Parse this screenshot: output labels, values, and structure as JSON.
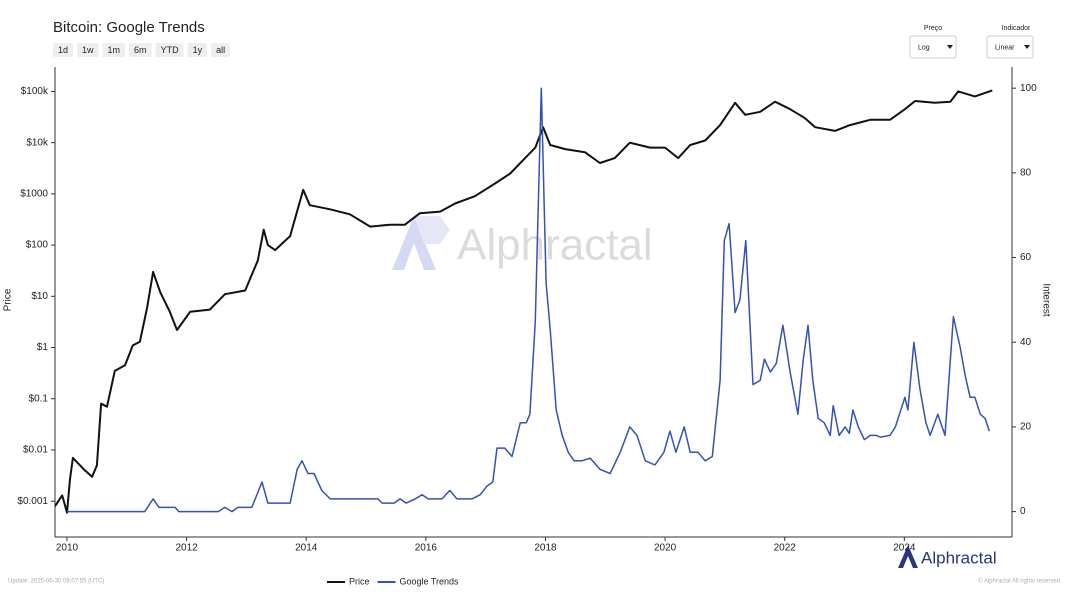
{
  "chart_data": {
    "type": "line",
    "title": "Bitcoin: Google Trends",
    "xlabel": null,
    "ylabel": "Price",
    "y2label": "Interest",
    "ylog": true,
    "legend": "bottom",
    "xlim": [
      2009.8,
      2025.8
    ],
    "xticks": [
      2010,
      2012,
      2014,
      2016,
      2018,
      2020,
      2022,
      2024
    ],
    "ylim": [
      0.0002,
      300000
    ],
    "yticks": [
      {
        "value": 0.001,
        "label": "$0.001"
      },
      {
        "value": 0.01,
        "label": "$0.01"
      },
      {
        "value": 0.1,
        "label": "$0.1"
      },
      {
        "value": 1,
        "label": "$1"
      },
      {
        "value": 10,
        "label": "$10"
      },
      {
        "value": 100,
        "label": "$100"
      },
      {
        "value": 1000,
        "label": "$1000"
      },
      {
        "value": 10000,
        "label": "$10k"
      },
      {
        "value": 100000,
        "label": "$100k"
      }
    ],
    "y2lim": [
      -6,
      105
    ],
    "y2ticks": [
      0,
      20,
      40,
      60,
      80,
      100
    ],
    "series": [
      {
        "name": "Price",
        "color": "#111111",
        "x": [
          2009.8,
          2009.92,
          2010.0,
          2010.05,
          2010.1,
          2010.3,
          2010.42,
          2010.5,
          2010.57,
          2010.67,
          2010.8,
          2010.97,
          2011.1,
          2011.22,
          2011.34,
          2011.44,
          2011.56,
          2011.72,
          2011.84,
          2012.06,
          2012.39,
          2012.64,
          2012.98,
          2013.19,
          2013.29,
          2013.36,
          2013.48,
          2013.73,
          2013.95,
          2014.06,
          2014.4,
          2014.73,
          2015.07,
          2015.4,
          2015.65,
          2015.9,
          2016.24,
          2016.49,
          2016.82,
          2017.16,
          2017.41,
          2017.66,
          2017.83,
          2017.96,
          2018.08,
          2018.33,
          2018.66,
          2018.91,
          2019.16,
          2019.41,
          2019.75,
          2020.0,
          2020.22,
          2020.42,
          2020.67,
          2020.92,
          2021.17,
          2021.34,
          2021.59,
          2021.84,
          2022.09,
          2022.34,
          2022.51,
          2022.84,
          2023.09,
          2023.43,
          2023.76,
          2024.01,
          2024.18,
          2024.51,
          2024.77,
          2024.9,
          2025.18,
          2025.47
        ],
        "values": [
          0.0008,
          0.0013,
          0.0006,
          0.0027,
          0.007,
          0.004,
          0.003,
          0.005,
          0.08,
          0.07,
          0.35,
          0.45,
          1.1,
          1.3,
          6,
          30,
          12,
          5,
          2.2,
          5,
          5.5,
          11,
          13,
          50,
          200,
          100,
          80,
          150,
          1200,
          600,
          500,
          400,
          230,
          250,
          250,
          420,
          450,
          650,
          900,
          1600,
          2500,
          5000,
          8000,
          20000,
          9000,
          7500,
          6500,
          4000,
          5000,
          10000,
          8000,
          8000,
          5000,
          9000,
          11000,
          22000,
          60000,
          35000,
          40000,
          63000,
          45000,
          30000,
          20000,
          17000,
          22000,
          28000,
          28000,
          45000,
          65000,
          60000,
          63000,
          100000,
          80000,
          105000
        ]
      },
      {
        "name": "Google Trends",
        "color": "#3352b5",
        "axis": "y2",
        "x": [
          2010.0,
          2011.3,
          2011.44,
          2011.54,
          2011.81,
          2011.87,
          2012.53,
          2012.64,
          2012.76,
          2012.86,
          2013.09,
          2013.26,
          2013.36,
          2013.73,
          2013.85,
          2013.93,
          2014.03,
          2014.13,
          2014.26,
          2014.4,
          2015.2,
          2015.27,
          2015.47,
          2015.57,
          2015.67,
          2015.82,
          2015.94,
          2016.04,
          2016.27,
          2016.4,
          2016.52,
          2016.77,
          2016.91,
          2017.02,
          2017.12,
          2017.19,
          2017.32,
          2017.44,
          2017.58,
          2017.68,
          2017.74,
          2017.83,
          2017.93,
          2018.01,
          2018.08,
          2018.18,
          2018.28,
          2018.38,
          2018.48,
          2018.61,
          2018.75,
          2018.91,
          2019.08,
          2019.25,
          2019.41,
          2019.53,
          2019.67,
          2019.83,
          2019.98,
          2020.08,
          2020.18,
          2020.32,
          2020.42,
          2020.55,
          2020.67,
          2020.79,
          2020.92,
          2020.99,
          2021.07,
          2021.17,
          2021.25,
          2021.35,
          2021.47,
          2021.59,
          2021.66,
          2021.76,
          2021.86,
          2021.97,
          2022.09,
          2022.22,
          2022.31,
          2022.39,
          2022.47,
          2022.56,
          2022.66,
          2022.76,
          2022.81,
          2022.91,
          2023.01,
          2023.08,
          2023.14,
          2023.23,
          2023.33,
          2023.43,
          2023.53,
          2023.6,
          2023.76,
          2023.85,
          2024.01,
          2024.06,
          2024.16,
          2024.26,
          2024.36,
          2024.43,
          2024.56,
          2024.68,
          2024.82,
          2024.93,
          2025.02,
          2025.1,
          2025.18,
          2025.27,
          2025.35,
          2025.42
        ],
        "values": [
          0,
          0,
          3,
          1,
          1,
          0,
          0,
          1,
          0,
          1,
          1,
          7,
          2,
          2,
          10,
          12,
          9,
          9,
          5,
          3,
          3,
          2,
          2,
          3,
          2,
          3,
          4,
          3,
          3,
          5,
          3,
          3,
          4,
          6,
          7,
          15,
          15,
          13,
          21,
          21,
          23,
          45,
          100,
          54,
          43,
          24,
          18,
          14,
          12,
          12,
          12.6,
          10,
          9,
          14,
          20,
          18,
          12,
          11,
          14,
          19,
          14,
          20,
          14,
          14,
          12,
          13,
          31,
          64,
          68,
          47,
          50,
          64,
          30,
          31,
          36,
          33,
          35,
          44,
          33,
          23,
          36,
          44,
          31,
          22,
          21,
          18,
          25,
          18,
          20,
          18.5,
          24,
          20,
          17,
          18,
          18,
          17.6,
          18,
          20,
          27,
          24,
          40,
          29,
          21,
          18,
          23,
          18,
          46,
          39,
          32,
          27,
          27,
          23,
          22,
          19
        ]
      }
    ]
  },
  "controls": {
    "ranges": [
      "1d",
      "1w",
      "1m",
      "6m",
      "YTD",
      "1y",
      "all"
    ],
    "dropdowns": [
      {
        "label": "Preço",
        "value": "Log"
      },
      {
        "label": "Indicador",
        "value": "Linear"
      }
    ]
  },
  "watermark": "Alphractal",
  "logo": "Alphractal",
  "footer": {
    "update": "Update: 2025-06-30 08:07:55 (UTC)",
    "copyright": "© Alphractal All rights reserved"
  }
}
